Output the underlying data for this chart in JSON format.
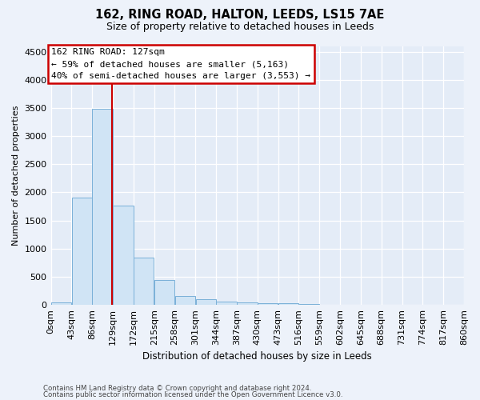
{
  "title": "162, RING ROAD, HALTON, LEEDS, LS15 7AE",
  "subtitle": "Size of property relative to detached houses in Leeds",
  "xlabel": "Distribution of detached houses by size in Leeds",
  "ylabel": "Number of detached properties",
  "bar_color": "#d0e4f5",
  "bar_edge_color": "#7ab0d8",
  "vline_x": 127,
  "vline_color": "#cc0000",
  "annotation_title": "162 RING ROAD: 127sqm",
  "annotation_line1": "← 59% of detached houses are smaller (5,163)",
  "annotation_line2": "40% of semi-detached houses are larger (3,553) →",
  "annotation_box_edgecolor": "#cc0000",
  "bins": [
    0,
    43,
    86,
    129,
    172,
    215,
    258,
    301,
    344,
    387,
    430,
    473,
    516,
    559,
    602,
    645,
    688,
    731,
    774,
    817,
    860
  ],
  "bar_heights": [
    45,
    1900,
    3490,
    1760,
    840,
    450,
    155,
    95,
    60,
    52,
    38,
    26,
    16,
    9,
    5,
    3,
    2,
    1,
    1,
    0
  ],
  "ylim": [
    0,
    4600
  ],
  "yticks": [
    0,
    500,
    1000,
    1500,
    2000,
    2500,
    3000,
    3500,
    4000,
    4500
  ],
  "bg_color": "#edf2fa",
  "plot_bg_color": "#e4ecf7",
  "footer1": "Contains HM Land Registry data © Crown copyright and database right 2024.",
  "footer2": "Contains public sector information licensed under the Open Government Licence v3.0."
}
